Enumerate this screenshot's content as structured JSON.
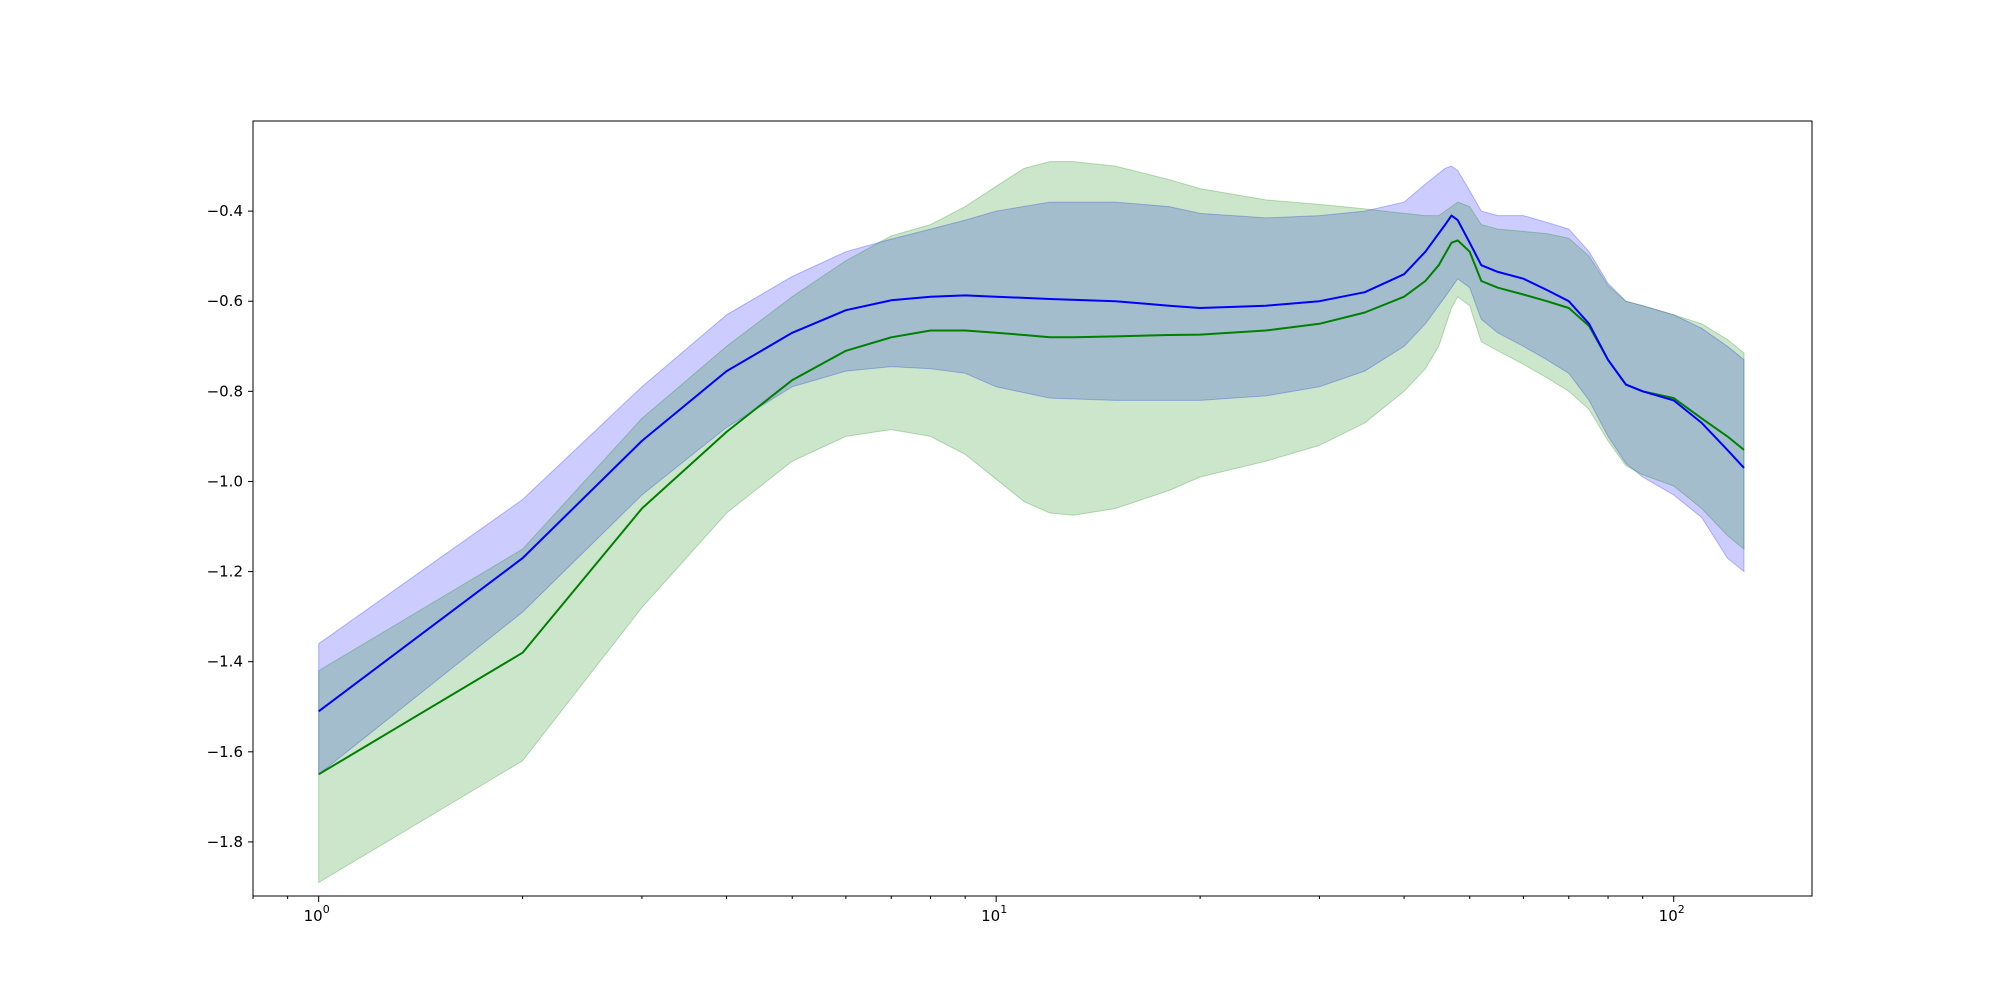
{
  "chart_data": {
    "type": "line",
    "title": "",
    "xlabel": "",
    "ylabel": "",
    "x_scale": "log",
    "xlim": [
      0.8,
      160
    ],
    "ylim": [
      -1.92,
      -0.2
    ],
    "grid": false,
    "x_ticks": [
      {
        "value": 1,
        "base": "10",
        "exp": "0"
      },
      {
        "value": 10,
        "base": "10",
        "exp": "1"
      },
      {
        "value": 100,
        "base": "10",
        "exp": "2"
      }
    ],
    "y_ticks": [
      {
        "value": -0.4,
        "label": "−0.4"
      },
      {
        "value": -0.6,
        "label": "−0.6"
      },
      {
        "value": -0.8,
        "label": "−0.8"
      },
      {
        "value": -1.0,
        "label": "−1.0"
      },
      {
        "value": -1.2,
        "label": "−1.2"
      },
      {
        "value": -1.4,
        "label": "−1.4"
      },
      {
        "value": -1.6,
        "label": "−1.6"
      },
      {
        "value": -1.8,
        "label": "−1.8"
      }
    ],
    "series": [
      {
        "color": "#0000ff",
        "band_color": "#0000ff",
        "band_opacity": 0.2,
        "points": [
          [
            1,
            -1.51,
            -1.36,
            -1.65
          ],
          [
            2,
            -1.17,
            -1.04,
            -1.29
          ],
          [
            3,
            -0.91,
            -0.79,
            -1.03
          ],
          [
            4,
            -0.755,
            -0.63,
            -0.88
          ],
          [
            5,
            -0.67,
            -0.545,
            -0.79
          ],
          [
            6,
            -0.62,
            -0.49,
            -0.755
          ],
          [
            7,
            -0.598,
            -0.462,
            -0.745
          ],
          [
            8,
            -0.59,
            -0.44,
            -0.75
          ],
          [
            9,
            -0.587,
            -0.42,
            -0.76
          ],
          [
            10,
            -0.59,
            -0.4,
            -0.79
          ],
          [
            12,
            -0.595,
            -0.38,
            -0.815
          ],
          [
            15,
            -0.6,
            -0.38,
            -0.82
          ],
          [
            18,
            -0.61,
            -0.39,
            -0.82
          ],
          [
            20,
            -0.615,
            -0.405,
            -0.82
          ],
          [
            25,
            -0.61,
            -0.415,
            -0.81
          ],
          [
            30,
            -0.6,
            -0.41,
            -0.79
          ],
          [
            35,
            -0.58,
            -0.4,
            -0.755
          ],
          [
            40,
            -0.54,
            -0.38,
            -0.7
          ],
          [
            43,
            -0.49,
            -0.34,
            -0.65
          ],
          [
            46,
            -0.43,
            -0.305,
            -0.59
          ],
          [
            47,
            -0.41,
            -0.3,
            -0.57
          ],
          [
            48,
            -0.42,
            -0.31,
            -0.55
          ],
          [
            50,
            -0.47,
            -0.355,
            -0.57
          ],
          [
            52,
            -0.52,
            -0.4,
            -0.64
          ],
          [
            55,
            -0.535,
            -0.41,
            -0.67
          ],
          [
            60,
            -0.55,
            -0.41,
            -0.7
          ],
          [
            65,
            -0.575,
            -0.425,
            -0.73
          ],
          [
            70,
            -0.6,
            -0.44,
            -0.76
          ],
          [
            75,
            -0.65,
            -0.49,
            -0.82
          ],
          [
            80,
            -0.73,
            -0.56,
            -0.9
          ],
          [
            85,
            -0.785,
            -0.6,
            -0.96
          ],
          [
            90,
            -0.8,
            -0.61,
            -0.99
          ],
          [
            100,
            -0.82,
            -0.63,
            -1.03
          ],
          [
            110,
            -0.87,
            -0.66,
            -1.08
          ],
          [
            120,
            -0.93,
            -0.7,
            -1.17
          ],
          [
            127,
            -0.97,
            -0.73,
            -1.2
          ]
        ]
      },
      {
        "color": "#008000",
        "band_color": "#008000",
        "band_opacity": 0.2,
        "points": [
          [
            1,
            -1.65,
            -1.42,
            -1.89
          ],
          [
            2,
            -1.38,
            -1.15,
            -1.62
          ],
          [
            3,
            -1.06,
            -0.86,
            -1.28
          ],
          [
            4,
            -0.89,
            -0.7,
            -1.07
          ],
          [
            5,
            -0.775,
            -0.59,
            -0.955
          ],
          [
            6,
            -0.71,
            -0.51,
            -0.9
          ],
          [
            7,
            -0.68,
            -0.455,
            -0.885
          ],
          [
            8,
            -0.665,
            -0.43,
            -0.9
          ],
          [
            9,
            -0.665,
            -0.39,
            -0.94
          ],
          [
            10,
            -0.67,
            -0.345,
            -0.995
          ],
          [
            11,
            -0.675,
            -0.305,
            -1.045
          ],
          [
            12,
            -0.68,
            -0.29,
            -1.07
          ],
          [
            13,
            -0.68,
            -0.29,
            -1.075
          ],
          [
            15,
            -0.678,
            -0.3,
            -1.06
          ],
          [
            18,
            -0.675,
            -0.33,
            -1.02
          ],
          [
            20,
            -0.674,
            -0.35,
            -0.99
          ],
          [
            25,
            -0.665,
            -0.375,
            -0.955
          ],
          [
            30,
            -0.65,
            -0.385,
            -0.92
          ],
          [
            35,
            -0.625,
            -0.395,
            -0.87
          ],
          [
            40,
            -0.59,
            -0.405,
            -0.8
          ],
          [
            43,
            -0.555,
            -0.41,
            -0.75
          ],
          [
            45,
            -0.52,
            -0.41,
            -0.7
          ],
          [
            47,
            -0.47,
            -0.39,
            -0.615
          ],
          [
            48,
            -0.465,
            -0.38,
            -0.59
          ],
          [
            50,
            -0.49,
            -0.39,
            -0.61
          ],
          [
            52,
            -0.555,
            -0.43,
            -0.69
          ],
          [
            55,
            -0.57,
            -0.44,
            -0.71
          ],
          [
            60,
            -0.585,
            -0.445,
            -0.74
          ],
          [
            65,
            -0.6,
            -0.45,
            -0.77
          ],
          [
            70,
            -0.615,
            -0.46,
            -0.8
          ],
          [
            75,
            -0.655,
            -0.5,
            -0.84
          ],
          [
            80,
            -0.73,
            -0.565,
            -0.91
          ],
          [
            85,
            -0.785,
            -0.6,
            -0.965
          ],
          [
            90,
            -0.8,
            -0.61,
            -0.985
          ],
          [
            100,
            -0.815,
            -0.63,
            -1.01
          ],
          [
            110,
            -0.86,
            -0.65,
            -1.06
          ],
          [
            120,
            -0.9,
            -0.685,
            -1.12
          ],
          [
            127,
            -0.93,
            -0.715,
            -1.15
          ]
        ]
      }
    ]
  }
}
